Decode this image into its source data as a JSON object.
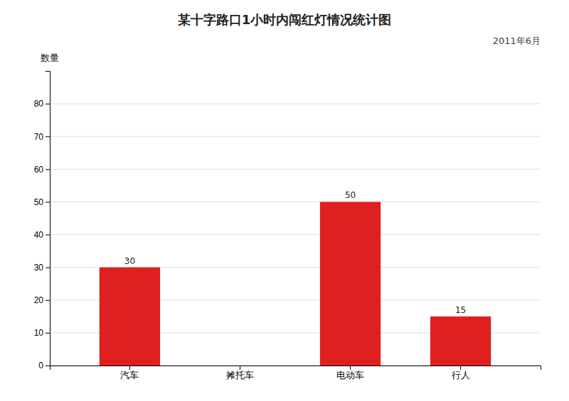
{
  "chart_data": {
    "type": "bar",
    "title": "某十字路口1小时内闯红灯情况统计图",
    "subtitle": "2011年6月",
    "ylabel": "数量",
    "categories": [
      "汽车",
      "摊托车",
      "电动车",
      "行人"
    ],
    "values": [
      30,
      0,
      50,
      15
    ],
    "color": "#e02020",
    "ylim": [
      0,
      90
    ],
    "yticks": [
      0,
      10,
      20,
      30,
      40,
      50,
      60,
      70,
      80
    ],
    "grid": true,
    "data_labels": true
  }
}
